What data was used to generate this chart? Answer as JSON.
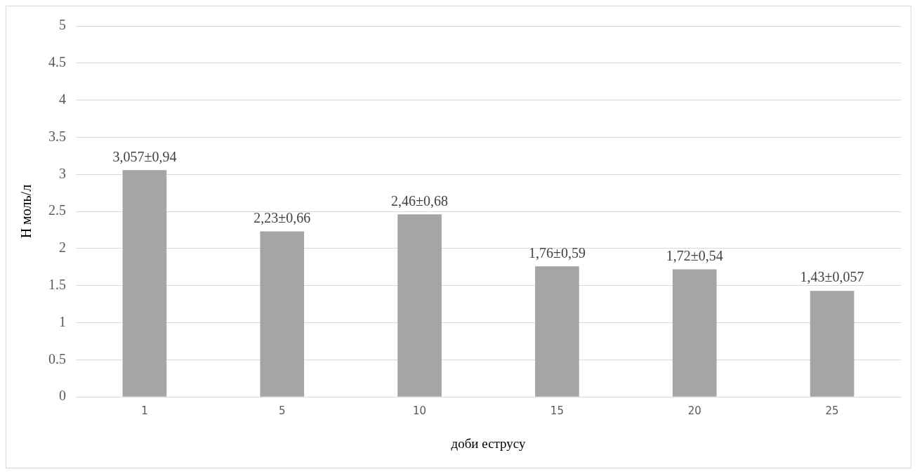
{
  "chart_data": {
    "type": "bar",
    "xlabel": "доби еструсу",
    "ylabel": "Н моль/л",
    "categories": [
      "1",
      "5",
      "10",
      "15",
      "20",
      "25"
    ],
    "values": [
      3.057,
      2.23,
      2.46,
      1.76,
      1.72,
      1.43
    ],
    "value_labels": [
      "3,057±0,94",
      "2,23±0,66",
      "2,46±0,68",
      "1,76±0,59",
      "1,72±0,54",
      "1,43±0,057"
    ],
    "color": "#a5a5a5",
    "ylim": [
      0,
      5
    ],
    "yticks": [
      0,
      0.5,
      1,
      1.5,
      2,
      2.5,
      3,
      3.5,
      4,
      4.5,
      5
    ],
    "grid": "y",
    "legend": false
  }
}
